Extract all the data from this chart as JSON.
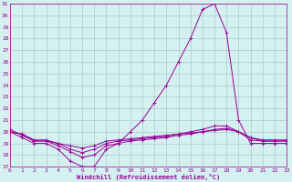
{
  "x": [
    0,
    1,
    2,
    3,
    4,
    5,
    6,
    7,
    8,
    9,
    10,
    11,
    12,
    13,
    14,
    15,
    16,
    17,
    18,
    19,
    20,
    21,
    22,
    23
  ],
  "line1": [
    20.0,
    19.5,
    19.0,
    19.0,
    18.5,
    17.5,
    17.0,
    17.0,
    18.5,
    19.0,
    20.0,
    21.0,
    22.5,
    24.0,
    26.0,
    28.0,
    30.5,
    31.0,
    28.5,
    21.0,
    19.0,
    19.0,
    19.0,
    19.0
  ],
  "line2": [
    20.0,
    19.8,
    19.2,
    19.2,
    19.0,
    18.5,
    18.2,
    18.5,
    19.0,
    19.2,
    19.3,
    19.4,
    19.5,
    19.6,
    19.8,
    20.0,
    20.2,
    20.5,
    20.5,
    20.0,
    19.5,
    19.2,
    19.2,
    19.2
  ],
  "line3": [
    20.0,
    19.8,
    19.3,
    19.3,
    19.0,
    18.8,
    18.6,
    18.8,
    19.2,
    19.3,
    19.4,
    19.5,
    19.6,
    19.7,
    19.8,
    19.9,
    20.0,
    20.1,
    20.2,
    20.0,
    19.5,
    19.3,
    19.3,
    19.3
  ],
  "line4": [
    20.2,
    19.7,
    19.2,
    19.2,
    18.8,
    18.3,
    17.8,
    18.0,
    18.8,
    19.0,
    19.2,
    19.3,
    19.4,
    19.5,
    19.7,
    19.8,
    20.0,
    20.2,
    20.3,
    20.0,
    19.3,
    19.2,
    19.2,
    19.2
  ],
  "line_color": "#990099",
  "bg_color": "#d4f0f0",
  "grid_color": "#aacccc",
  "xlabel": "Windchill (Refroidissement éolien,°C)",
  "ylim": [
    17,
    31
  ],
  "xlim": [
    0,
    23
  ],
  "yticks": [
    17,
    18,
    19,
    20,
    21,
    22,
    23,
    24,
    25,
    26,
    27,
    28,
    29,
    30,
    31
  ],
  "xticks": [
    0,
    1,
    2,
    3,
    4,
    5,
    6,
    7,
    8,
    9,
    10,
    11,
    12,
    13,
    14,
    15,
    16,
    17,
    18,
    19,
    20,
    21,
    22,
    23
  ],
  "label_fontsize": 5,
  "tick_fontsize": 4.5
}
